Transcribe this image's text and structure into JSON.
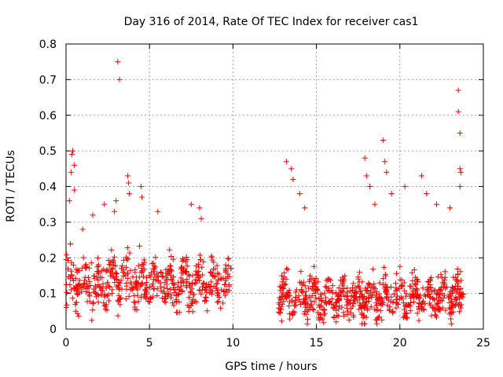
{
  "chart_data": {
    "type": "scatter",
    "title": "Day 316 of 2014, Rate Of TEC Index for receiver cas1",
    "xlabel": "GPS time / hours",
    "ylabel": "ROTI / TECUs",
    "xlim": [
      0,
      25
    ],
    "ylim": [
      0,
      0.8
    ],
    "xticks": [
      0,
      5,
      10,
      15,
      20,
      25
    ],
    "yticks": [
      0,
      0.1,
      0.2,
      0.3,
      0.4,
      0.5,
      0.6,
      0.7,
      0.8
    ],
    "grid": true,
    "marker": "plus",
    "color": "#ff0000",
    "series": [
      {
        "name": "ROTI",
        "clusters": [
          {
            "x_start": 0.0,
            "x_end": 9.9,
            "y_base": 0.13,
            "y_spread": 0.1,
            "density": 55
          },
          {
            "x_start": 12.7,
            "x_end": 23.8,
            "y_base": 0.09,
            "y_spread": 0.08,
            "density": 60
          }
        ],
        "x": [
          0.2,
          0.3,
          0.35,
          0.4,
          0.5,
          0.5,
          1.0,
          1.6,
          2.3,
          2.9,
          3.0,
          3.1,
          3.2,
          3.7,
          3.75,
          3.8,
          4.5,
          4.55,
          5.5,
          7.5,
          8.0,
          8.1,
          13.2,
          13.5,
          13.6,
          14.0,
          14.3,
          17.9,
          18.0,
          18.2,
          18.5,
          19.0,
          19.1,
          19.2,
          19.5,
          20.3,
          21.3,
          21.6,
          22.2,
          23.0,
          23.5,
          23.5,
          23.6,
          23.6,
          23.6,
          23.65
        ],
        "y": [
          0.36,
          0.44,
          0.49,
          0.5,
          0.46,
          0.39,
          0.28,
          0.32,
          0.35,
          0.33,
          0.36,
          0.75,
          0.7,
          0.43,
          0.41,
          0.38,
          0.4,
          0.37,
          0.33,
          0.35,
          0.34,
          0.31,
          0.47,
          0.45,
          0.42,
          0.38,
          0.34,
          0.48,
          0.43,
          0.4,
          0.35,
          0.53,
          0.47,
          0.44,
          0.38,
          0.4,
          0.43,
          0.38,
          0.35,
          0.34,
          0.67,
          0.61,
          0.55,
          0.45,
          0.4,
          0.44
        ]
      }
    ]
  }
}
